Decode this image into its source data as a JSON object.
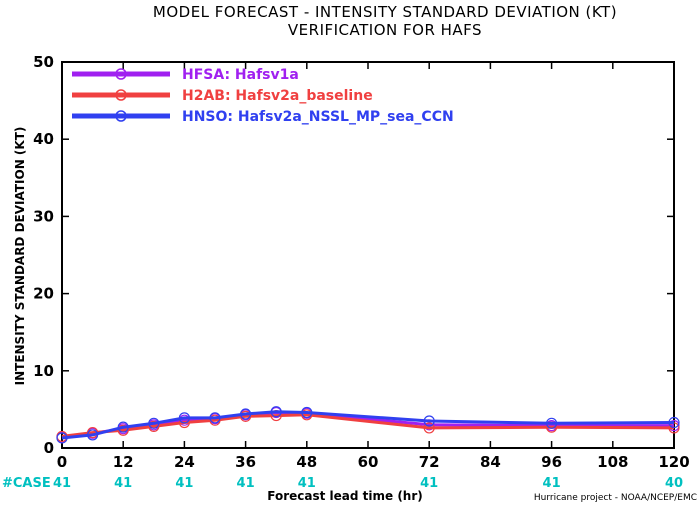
{
  "chart_data": {
    "type": "line",
    "title_line1": "MODEL FORECAST - INTENSITY STANDARD DEVIATION (KT)",
    "title_line2": "VERIFICATION FOR HAFS",
    "xlabel": "Forecast lead time (hr)",
    "ylabel": "INTENSITY STANDARD DEVIATION (KT)",
    "xlim": [
      0,
      120
    ],
    "ylim": [
      0,
      50
    ],
    "x_ticks": [
      "0",
      "12",
      "24",
      "36",
      "48",
      "60",
      "72",
      "84",
      "96",
      "108",
      "120"
    ],
    "y_ticks": [
      "0",
      "10",
      "20",
      "30",
      "40",
      "50"
    ],
    "grid": false,
    "legend_position": "top-left",
    "series": [
      {
        "name": "HFSA: Hafsv1a",
        "color": "#a020f0",
        "x": [
          0,
          6,
          12,
          18,
          24,
          30,
          36,
          42,
          48,
          72,
          96,
          120
        ],
        "y": [
          1.4,
          1.9,
          2.5,
          3.0,
          3.6,
          3.8,
          4.3,
          4.6,
          4.5,
          3.0,
          2.9,
          2.9
        ]
      },
      {
        "name": "H2AB: Hafsv2a_baseline",
        "color": "#f04040",
        "x": [
          0,
          6,
          12,
          18,
          24,
          30,
          36,
          42,
          48,
          72,
          96,
          120
        ],
        "y": [
          1.5,
          2.0,
          2.3,
          2.8,
          3.3,
          3.6,
          4.1,
          4.2,
          4.3,
          2.6,
          2.7,
          2.6
        ]
      },
      {
        "name": "HNSO: Hafsv2a_NSSL_MP_sea_CCN",
        "color": "#3040f0",
        "x": [
          0,
          6,
          12,
          18,
          24,
          30,
          36,
          42,
          48,
          72,
          96,
          120
        ],
        "y": [
          1.3,
          1.7,
          2.7,
          3.2,
          3.9,
          3.9,
          4.4,
          4.7,
          4.6,
          3.5,
          3.2,
          3.3
        ]
      }
    ],
    "cases_label": "#CASE",
    "cases_x": [
      0,
      12,
      24,
      36,
      48,
      72,
      96,
      120
    ],
    "cases": [
      "41",
      "41",
      "41",
      "41",
      "41",
      "41",
      "41",
      "40"
    ],
    "credit": "Hurricane project - NOAA/NCEP/EMC"
  },
  "colors": {
    "cases": "#00c0c0",
    "axis": "#000000"
  }
}
